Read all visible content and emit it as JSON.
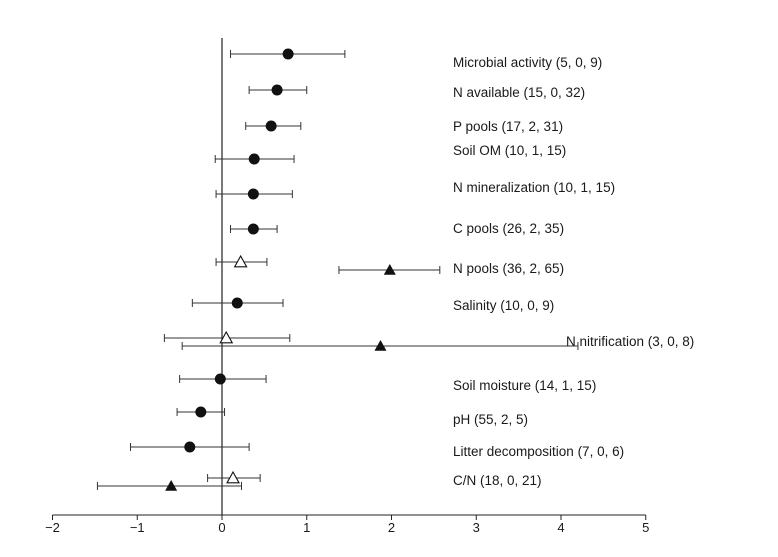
{
  "chart_data": {
    "type": "forest",
    "xlim": [
      -2,
      5
    ],
    "xticks": [
      "−2",
      "−1",
      "0",
      "1",
      "2",
      "3",
      "4",
      "5"
    ],
    "xtick_values": [
      -2,
      -1,
      0,
      1,
      2,
      3,
      4,
      5
    ],
    "grid": false,
    "reference_line": 0,
    "legend": "none",
    "rows": [
      {
        "label": "Microbial activity (5, 0, 9)",
        "points": [
          {
            "marker": "filled-circle",
            "mean": 0.78,
            "low": 0.1,
            "high": 1.45
          }
        ]
      },
      {
        "label": "N available (15, 0, 32)",
        "points": [
          {
            "marker": "filled-circle",
            "mean": 0.65,
            "low": 0.32,
            "high": 1.0
          }
        ]
      },
      {
        "label": "P pools (17, 2, 31)",
        "points": [
          {
            "marker": "filled-circle",
            "mean": 0.58,
            "low": 0.28,
            "high": 0.93
          }
        ]
      },
      {
        "label": "Soil OM (10, 1, 15)",
        "points": [
          {
            "marker": "filled-circle",
            "mean": 0.38,
            "low": -0.08,
            "high": 0.85
          }
        ]
      },
      {
        "label": "N mineralization (10, 1, 15)",
        "points": [
          {
            "marker": "filled-circle",
            "mean": 0.37,
            "low": -0.07,
            "high": 0.83
          }
        ]
      },
      {
        "label": "C pools (26, 2, 35)",
        "points": [
          {
            "marker": "filled-circle",
            "mean": 0.37,
            "low": 0.1,
            "high": 0.65
          }
        ]
      },
      {
        "label": "N pools (36, 2, 65)",
        "points": [
          {
            "marker": "open-triangle",
            "mean": 0.22,
            "low": -0.07,
            "high": 0.53
          },
          {
            "marker": "filled-triangle",
            "mean": 1.98,
            "low": 1.38,
            "high": 2.57
          }
        ]
      },
      {
        "label": "Salinity (10, 0, 9)",
        "points": [
          {
            "marker": "filled-circle",
            "mean": 0.18,
            "low": -0.35,
            "high": 0.72
          }
        ]
      },
      {
        "label": "N nitrification (3, 0, 8)",
        "points": [
          {
            "marker": "open-triangle",
            "mean": 0.05,
            "low": -0.68,
            "high": 0.8
          },
          {
            "marker": "filled-triangle",
            "mean": 1.87,
            "low": -0.47,
            "high": 4.2
          }
        ]
      },
      {
        "label": "Soil moisture (14, 1, 15)",
        "points": [
          {
            "marker": "filled-circle",
            "mean": -0.02,
            "low": -0.5,
            "high": 0.52
          }
        ]
      },
      {
        "label": "pH (55, 2, 5)",
        "points": [
          {
            "marker": "filled-circle",
            "mean": -0.25,
            "low": -0.53,
            "high": 0.03
          }
        ]
      },
      {
        "label": "Litter decomposition (7, 0, 6)",
        "points": [
          {
            "marker": "filled-circle",
            "mean": -0.38,
            "low": -1.08,
            "high": 0.32
          }
        ]
      },
      {
        "label": "C/N (18, 0, 21)",
        "points": [
          {
            "marker": "open-triangle",
            "mean": 0.13,
            "low": -0.17,
            "high": 0.45
          },
          {
            "marker": "filled-triangle",
            "mean": -0.6,
            "low": -1.47,
            "high": 0.23
          }
        ]
      }
    ]
  }
}
